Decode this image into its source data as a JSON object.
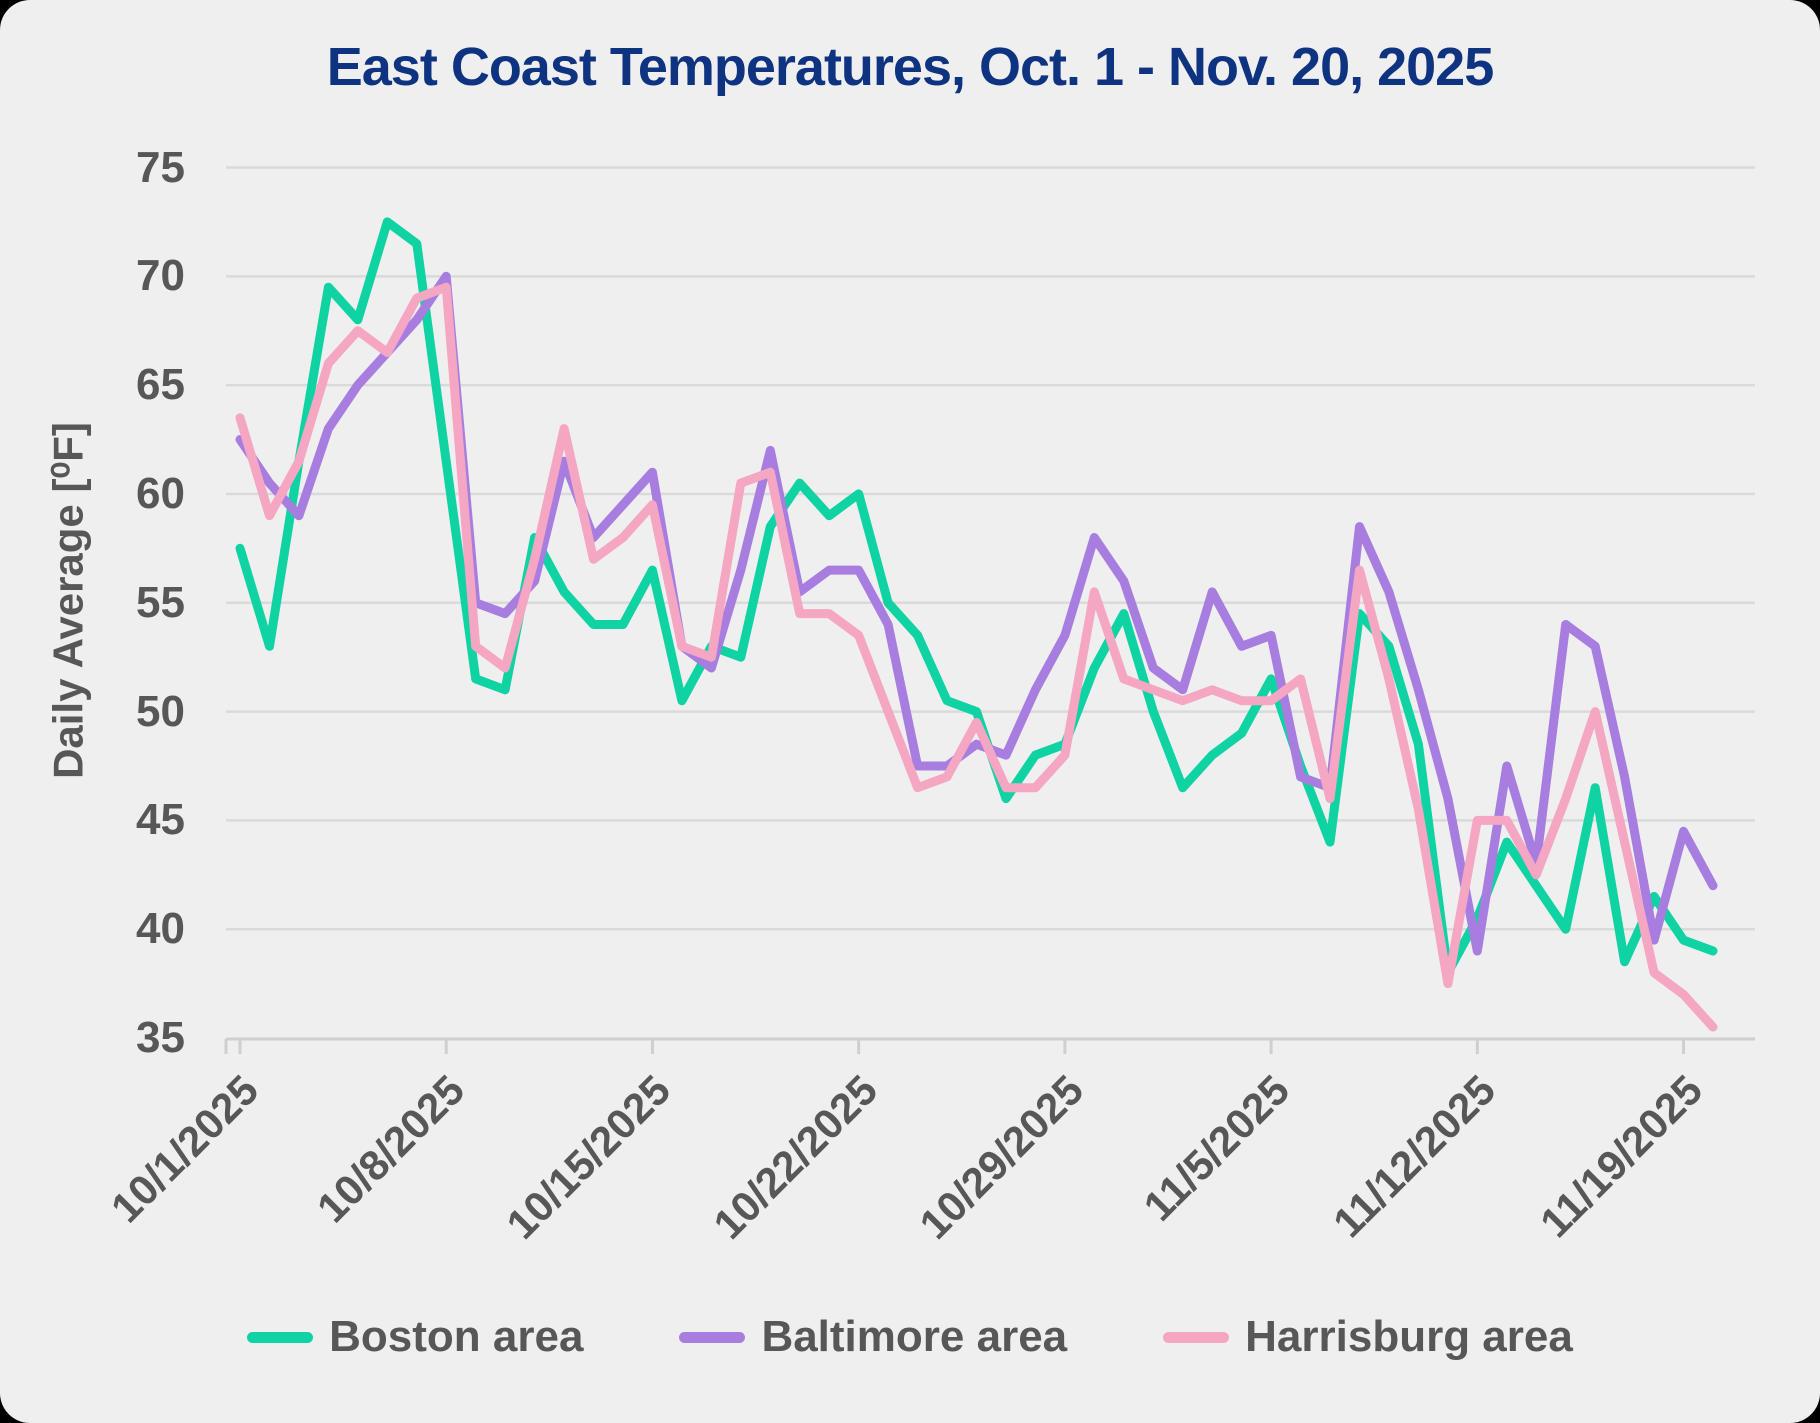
{
  "title": "East Coast Temperatures, Oct. 1 - Nov. 20, 2025",
  "chart_data": {
    "type": "line",
    "title": "East Coast Temperatures, Oct. 1 - Nov. 20, 2025",
    "xlabel": "",
    "ylabel": "Daily Average [⁰F]",
    "ylim": [
      35,
      75
    ],
    "yticks": [
      75,
      70,
      65,
      60,
      55,
      50,
      45,
      40,
      35
    ],
    "grid": "horizontal",
    "legend_position": "bottom",
    "background_color": "#f0efef",
    "gridline_color": "#dadada",
    "axis_color": "#cfcfcf",
    "text_color": "#575757",
    "title_color": "#0e3380",
    "xtick_every": 7,
    "xtick_labels": [
      "10/1/2025",
      "10/8/2025",
      "10/15/2025",
      "10/22/2025",
      "10/29/2025",
      "11/5/2025",
      "11/12/2025",
      "11/19/2025"
    ],
    "x": [
      "10/1/2025",
      "10/2/2025",
      "10/3/2025",
      "10/4/2025",
      "10/5/2025",
      "10/6/2025",
      "10/7/2025",
      "10/8/2025",
      "10/9/2025",
      "10/10/2025",
      "10/11/2025",
      "10/12/2025",
      "10/13/2025",
      "10/14/2025",
      "10/15/2025",
      "10/16/2025",
      "10/17/2025",
      "10/18/2025",
      "10/19/2025",
      "10/20/2025",
      "10/21/2025",
      "10/22/2025",
      "10/23/2025",
      "10/24/2025",
      "10/25/2025",
      "10/26/2025",
      "10/27/2025",
      "10/28/2025",
      "10/29/2025",
      "10/30/2025",
      "10/31/2025",
      "11/1/2025",
      "11/2/2025",
      "11/3/2025",
      "11/4/2025",
      "11/5/2025",
      "11/6/2025",
      "11/7/2025",
      "11/8/2025",
      "11/9/2025",
      "11/10/2025",
      "11/11/2025",
      "11/12/2025",
      "11/13/2025",
      "11/14/2025",
      "11/15/2025",
      "11/16/2025",
      "11/17/2025",
      "11/18/2025",
      "11/19/2025",
      "11/20/2025"
    ],
    "series": [
      {
        "name": "Boston area",
        "color": "#0fd3a2",
        "values": [
          57.5,
          53,
          61.5,
          69.5,
          68,
          72.5,
          71.5,
          61.5,
          51.5,
          51,
          58,
          55.5,
          54,
          54,
          56.5,
          50.5,
          53,
          52.5,
          58.5,
          60.5,
          59,
          60,
          55,
          53.5,
          50.5,
          50,
          46,
          48,
          48.5,
          52,
          54.5,
          50,
          46.5,
          48,
          49,
          51.5,
          47.5,
          44,
          54.5,
          53,
          48.5,
          38,
          40.5,
          44,
          42,
          40,
          46.5,
          38.5,
          41.5,
          39.5,
          39
        ]
      },
      {
        "name": "Baltimore area",
        "color": "#a87de0",
        "values": [
          62.5,
          60.5,
          59,
          63,
          65,
          66.5,
          68,
          70,
          55,
          54.5,
          56,
          61.5,
          58,
          59.5,
          61,
          53,
          52,
          56.5,
          62,
          55.5,
          56.5,
          56.5,
          54,
          47.5,
          47.5,
          48.5,
          48,
          51,
          53.5,
          58,
          56,
          52,
          51,
          55.5,
          53,
          53.5,
          47,
          46.5,
          58.5,
          55.5,
          51,
          46,
          39,
          47.5,
          43,
          54,
          53,
          47,
          39.5,
          44.5,
          42
        ]
      },
      {
        "name": "Harrisburg area",
        "color": "#f4a6c3",
        "values": [
          63.5,
          59,
          61.5,
          66,
          67.5,
          66.5,
          69,
          69.5,
          53,
          52,
          57,
          63,
          57,
          58,
          59.5,
          53,
          52.5,
          60.5,
          61,
          54.5,
          54.5,
          53.5,
          50,
          46.5,
          47,
          49.5,
          46.5,
          46.5,
          48,
          55.5,
          51.5,
          51,
          50.5,
          51,
          50.5,
          50.5,
          51.5,
          46,
          56.5,
          51.5,
          45.5,
          37.5,
          45,
          45,
          42.5,
          46,
          50,
          44,
          38,
          37,
          35.5
        ]
      }
    ]
  }
}
